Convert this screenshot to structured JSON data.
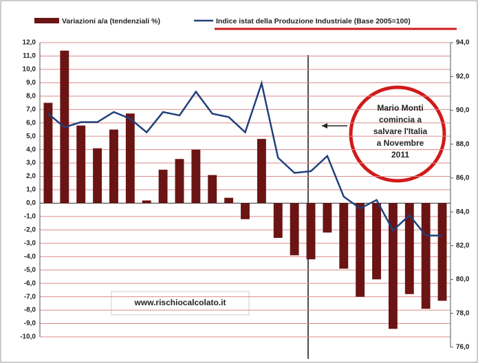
{
  "chart_data": {
    "type": "bar_line",
    "categories": [
      null,
      null,
      null,
      null,
      null,
      null,
      null,
      null,
      null,
      null,
      null,
      null,
      null,
      null,
      null,
      null,
      null,
      null,
      null,
      null,
      null,
      null,
      null,
      null,
      null
    ],
    "series": [
      {
        "name": "Variazioni a/a (tendenziali %)",
        "type": "bar",
        "color": "#6b1414",
        "values": [
          7.5,
          11.4,
          5.8,
          4.1,
          5.5,
          6.7,
          0.2,
          2.5,
          3.3,
          4.0,
          2.1,
          0.4,
          -1.2,
          4.8,
          -2.6,
          -3.9,
          -4.2,
          -2.2,
          -4.9,
          -7.0,
          -5.7,
          -9.4,
          -6.8,
          -7.9,
          -7.3
        ]
      },
      {
        "name": "Indice istat della Produzione Industriale (Base 2005=100)",
        "type": "line",
        "axis": "y2",
        "color": "#1f3f7a",
        "values": [
          89.8,
          89.0,
          89.3,
          89.3,
          89.9,
          89.5,
          88.7,
          89.9,
          89.7,
          91.1,
          89.8,
          89.6,
          88.7,
          91.6,
          87.2,
          86.3,
          86.4,
          87.3,
          84.9,
          84.2,
          84.7,
          82.9,
          83.8,
          82.6,
          82.6
        ]
      }
    ],
    "ylim": [
      -10,
      12
    ],
    "yticks": [
      {
        "value": -10,
        "label": "-10,0"
      },
      {
        "value": -9,
        "label": "-9,0"
      },
      {
        "value": -8,
        "label": "-8,0"
      },
      {
        "value": -7,
        "label": "-7,0"
      },
      {
        "value": -6,
        "label": "-6,0"
      },
      {
        "value": -5,
        "label": "-5,0"
      },
      {
        "value": -4,
        "label": "-4,0"
      },
      {
        "value": -3,
        "label": "-3,0"
      },
      {
        "value": -2,
        "label": "-2,0"
      },
      {
        "value": -1,
        "label": "-1,0"
      },
      {
        "value": 0,
        "label": "0,0"
      },
      {
        "value": 1,
        "label": "1,0"
      },
      {
        "value": 2,
        "label": "2,0"
      },
      {
        "value": 3,
        "label": "3,0"
      },
      {
        "value": 4,
        "label": "4,0"
      },
      {
        "value": 5,
        "label": "5,0"
      },
      {
        "value": 6,
        "label": "6,0"
      },
      {
        "value": 7,
        "label": "7,0"
      },
      {
        "value": 8,
        "label": "8,0"
      },
      {
        "value": 9,
        "label": "9,0"
      },
      {
        "value": 10,
        "label": "10,0"
      },
      {
        "value": 11,
        "label": "11,0"
      },
      {
        "value": 12,
        "label": "12,0"
      }
    ],
    "y2lim": [
      76,
      94
    ],
    "y2ticks": [
      {
        "value": 76,
        "label": "76,0"
      },
      {
        "value": 78,
        "label": "78,0"
      },
      {
        "value": 80,
        "label": "80,0"
      },
      {
        "value": 82,
        "label": "82,0"
      },
      {
        "value": 84,
        "label": "84,0"
      },
      {
        "value": 86,
        "label": "86,0"
      },
      {
        "value": 88,
        "label": "88,0"
      },
      {
        "value": 90,
        "label": "90,0"
      },
      {
        "value": 92,
        "label": "92,0"
      },
      {
        "value": 94,
        "label": "94,0"
      }
    ],
    "grid": true,
    "annotation": [
      "Mario Monti",
      "comincia a",
      "salvare l'Italia",
      "a Novembre",
      "2011"
    ],
    "watermark": "www.rischiocalcolato.it"
  }
}
